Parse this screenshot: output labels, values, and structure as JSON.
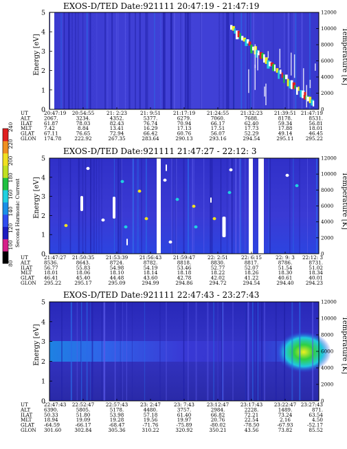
{
  "colorbar": {
    "label": "Second Harmonic Current",
    "ticks": [
      "80",
      "100",
      "120",
      "140",
      "160",
      "180",
      "200",
      "220",
      "240"
    ],
    "colors": [
      "#000000",
      "#d61f8a",
      "#1c1cc0",
      "#2f4cf0",
      "#1a8fe8",
      "#20d0e0",
      "#20c040",
      "#c0e020",
      "#f0e020",
      "#f09020",
      "#e02020"
    ]
  },
  "chart_data": [
    {
      "type": "heatmap",
      "title": "EXOS-D/TED   Date:921111  20:47:19 - 21:47:19",
      "ylabel": "Energy [eV]",
      "y2label": "Temperature [K]",
      "yticks": [
        "0",
        "1",
        "2",
        "3",
        "4",
        "5"
      ],
      "y2ticks": [
        "0",
        "2000",
        "4000",
        "6000",
        "8000",
        "10000",
        "12000"
      ],
      "table": {
        "rows": [
          {
            "name": "UT",
            "values": [
              "20:47:19",
              "20:54:55",
              "21: 2:23",
              "21: 9:51",
              "21:17:19",
              "21:24:55",
              "21:32:23",
              "21:39:51",
              "21:47:19"
            ]
          },
          {
            "name": "ALT",
            "values": [
              "2067.",
              "3234.",
              "4352.",
              "5377.",
              "6279.",
              "7060.",
              "7688.",
              "8178.",
              "8531."
            ]
          },
          {
            "name": "ILAT",
            "values": [
              "61.87",
              "78.03",
              "82.43",
              "76.74",
              "70.94",
              "66.17",
              "62.40",
              "59.34",
              "56.81"
            ]
          },
          {
            "name": "MLT",
            "values": [
              "7.42",
              "8.84",
              "13.41",
              "16.29",
              "17.13",
              "17.51",
              "17.73",
              "17.88",
              "18.01"
            ]
          },
          {
            "name": "GLAT",
            "values": [
              "67.11",
              "76.65",
              "72.94",
              "66.42",
              "60.76",
              "56.07",
              "52.29",
              "49.14",
              "46.45"
            ]
          },
          {
            "name": "GLON",
            "values": [
              "174.78",
              "222.92",
              "267.35",
              "283.64",
              "290.13",
              "293.16",
              "294.54",
              "295.11",
              "295.22"
            ]
          }
        ]
      }
    },
    {
      "type": "heatmap",
      "title": "EXOS-D/TED   Date:921111  21:47:27 - 22:12: 3",
      "ylabel": "Energy [eV]",
      "y2label": "Temperature [K]",
      "yticks": [
        "0",
        "1",
        "2",
        "3",
        "4",
        "5"
      ],
      "y2ticks": [
        "0",
        "2000",
        "4000",
        "6000",
        "8000",
        "10000",
        "12000"
      ],
      "table": {
        "rows": [
          {
            "name": "UT",
            "values": [
              "21:47:27",
              "21:50:35",
              "21:53:39",
              "21:56:43",
              "21:59:47",
              "22: 2:51",
              "22: 6:15",
              "22: 9: 3",
              "22:12: 3"
            ]
          },
          {
            "name": "ALT",
            "values": [
              "8536.",
              "8643.",
              "8724.",
              "8782.",
              "8818.",
              "8830.",
              "8817.",
              "8786.",
              "8731."
            ]
          },
          {
            "name": "ILAT",
            "values": [
              "56.77",
              "55.83",
              "54.98",
              "54.19",
              "53.46",
              "52.77",
              "52.07",
              "51.54",
              "51.02"
            ]
          },
          {
            "name": "MLT",
            "values": [
              "18.01",
              "18.06",
              "18.10",
              "18.14",
              "18.18",
              "18.22",
              "18.26",
              "18.30",
              "18.34"
            ]
          },
          {
            "name": "GLAT",
            "values": [
              "46.41",
              "45.40",
              "44.48",
              "43.60",
              "42.78",
              "42.02",
              "41.22",
              "40.61",
              "40.01"
            ]
          },
          {
            "name": "GLON",
            "values": [
              "295.22",
              "295.17",
              "295.09",
              "294.99",
              "294.86",
              "294.72",
              "294.54",
              "294.40",
              "294.23"
            ]
          }
        ]
      }
    },
    {
      "type": "heatmap",
      "title": "EXOS-D/TED   Date:921111  22:47:43 - 23:27:43",
      "ylabel": "Energy [eV]",
      "y2label": "Temperature [K]",
      "yticks": [
        "0",
        "1",
        "2",
        "3",
        "4",
        "5"
      ],
      "y2ticks": [
        "0",
        "2000",
        "4000",
        "6000",
        "8000",
        "10000",
        "12000"
      ],
      "table": {
        "rows": [
          {
            "name": "UT",
            "values": [
              "22:47:43",
              "22:52:47",
              "22:57:43",
              "23: 2:47",
              "23: 7:43",
              "23:12:47",
              "23:17:43",
              "23:22:47",
              "23:27:43"
            ]
          },
          {
            "name": "ALT",
            "values": [
              "6390.",
              "5805.",
              "5178.",
              "4480.",
              "3757.",
              "2984.",
              "2228.",
              "1489.",
              "871."
            ]
          },
          {
            "name": "ILAT",
            "values": [
              "50.33",
              "51.80",
              "53.98",
              "57.18",
              "61.40",
              "66.82",
              "72.21",
              "73.24",
              "63.54"
            ]
          },
          {
            "name": "MLT",
            "values": [
              "18.94",
              "19.09",
              "19.28",
              "19.56",
              "19.97",
              "20.76",
              "22.54",
              "2.16",
              "4.50"
            ]
          },
          {
            "name": "GLAT",
            "values": [
              "-64.59",
              "-66.17",
              "-68.47",
              "-71.76",
              "-75.89",
              "-80.02",
              "-78.50",
              "-67.93",
              "-52.17"
            ]
          },
          {
            "name": "GLON",
            "values": [
              "301.60",
              "302.84",
              "305.36",
              "310.22",
              "320.92",
              "350.21",
              "43.56",
              "73.82",
              "85.52"
            ]
          }
        ]
      }
    }
  ]
}
